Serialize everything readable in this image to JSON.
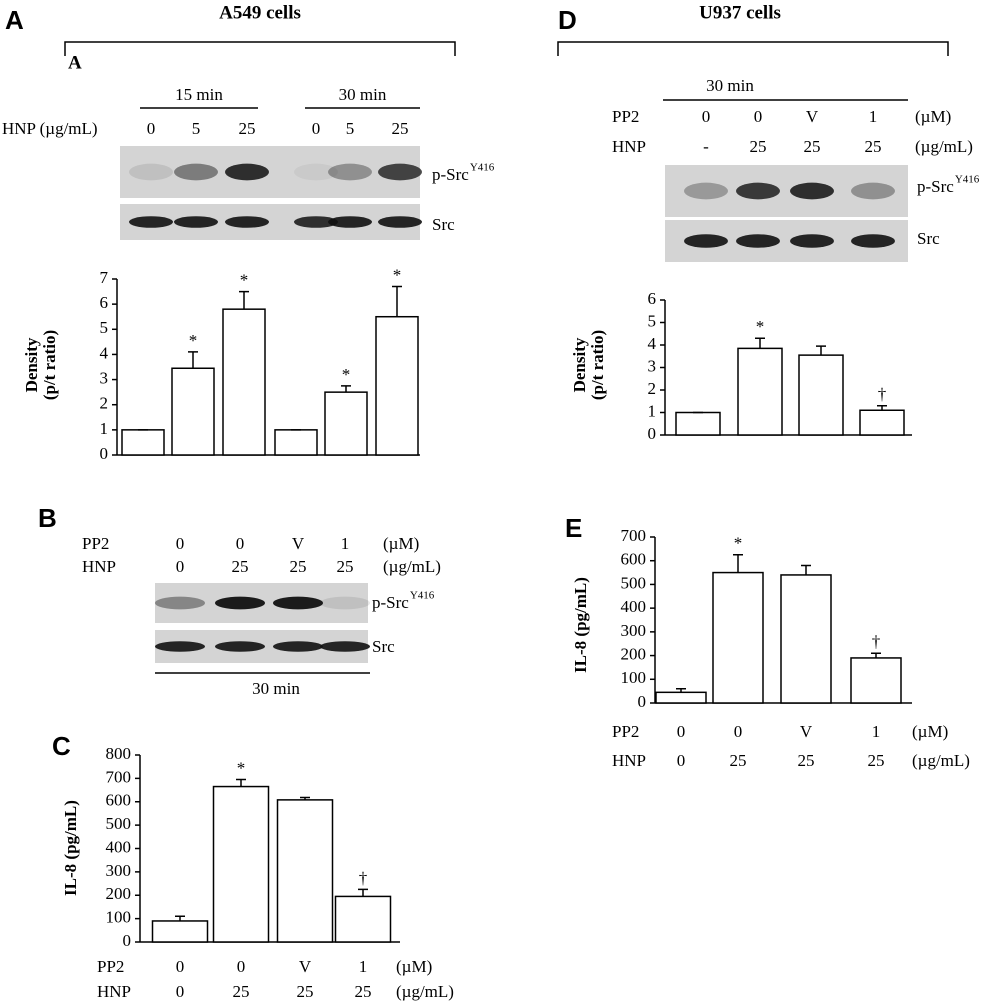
{
  "chart_data": [
    {
      "type": "bar",
      "panel": "A",
      "title": "A549 cells",
      "subtitle": "A",
      "groups": [
        "15 min",
        "30 min"
      ],
      "row_label": "HNP (µg/mL)",
      "categories": [
        "0",
        "5",
        "25",
        "0",
        "5",
        "25"
      ],
      "blot_labels": [
        {
          "text": "p-Src",
          "sup": "Y416"
        },
        {
          "text": "Src"
        }
      ],
      "ylabel": [
        "Density",
        "(p/t ratio)"
      ],
      "values": [
        1,
        3.45,
        5.8,
        1,
        2.5,
        5.5
      ],
      "errors": [
        0,
        0.65,
        0.7,
        0,
        0.25,
        1.2
      ],
      "annotations": [
        null,
        "*",
        "*",
        null,
        "*",
        "*"
      ],
      "ylim": [
        0,
        7
      ],
      "yticks": [
        0,
        1,
        2,
        3,
        4,
        5,
        6,
        7
      ],
      "color": "#ffffff"
    },
    {
      "type": "bar",
      "panel": "C",
      "rows": [
        {
          "label": "PP2",
          "categories": [
            "0",
            "0",
            "V",
            "1"
          ],
          "unit": "(µM)"
        },
        {
          "label": "HNP",
          "categories": [
            "0",
            "25",
            "25",
            "25"
          ],
          "unit": "(µg/mL)"
        }
      ],
      "ylabel": [
        "IL-8 (pg/mL)"
      ],
      "values": [
        90,
        665,
        608,
        195
      ],
      "errors": [
        20,
        30,
        10,
        30
      ],
      "annotations": [
        null,
        "*",
        null,
        "†"
      ],
      "ylim": [
        0,
        800
      ],
      "yticks": [
        0,
        100,
        200,
        300,
        400,
        500,
        600,
        700,
        800
      ],
      "color": "#ffffff"
    },
    {
      "type": "bar",
      "panel": "D",
      "title": "U937 cells",
      "time": "30 min",
      "rows": [
        {
          "label": "PP2",
          "categories": [
            "0",
            "0",
            "V",
            "1"
          ],
          "unit": "(µM)"
        },
        {
          "label": "HNP",
          "categories": [
            "-",
            "25",
            "25",
            "25"
          ],
          "unit": "(µg/mL)"
        }
      ],
      "blot_labels": [
        {
          "text": "p-Src",
          "sup": "Y416"
        },
        {
          "text": "Src"
        }
      ],
      "ylabel": [
        "Density",
        "(p/t ratio)"
      ],
      "values": [
        1,
        3.85,
        3.55,
        1.1
      ],
      "errors": [
        0,
        0.45,
        0.4,
        0.2
      ],
      "annotations": [
        null,
        "*",
        null,
        "†"
      ],
      "ylim": [
        0,
        6
      ],
      "yticks": [
        0,
        1,
        2,
        3,
        4,
        5,
        6
      ],
      "color": "#ffffff"
    },
    {
      "type": "bar",
      "panel": "E",
      "rows": [
        {
          "label": "PP2",
          "categories": [
            "0",
            "0",
            "V",
            "1"
          ],
          "unit": "(µM)"
        },
        {
          "label": "HNP",
          "categories": [
            "0",
            "25",
            "25",
            "25"
          ],
          "unit": "(µg/mL)"
        }
      ],
      "ylabel": [
        "IL-8 (pg/mL)"
      ],
      "values": [
        45,
        550,
        540,
        190
      ],
      "errors": [
        15,
        75,
        40,
        20
      ],
      "annotations": [
        null,
        "*",
        null,
        "†"
      ],
      "ylim": [
        0,
        700
      ],
      "yticks": [
        0,
        100,
        200,
        300,
        400,
        500,
        600,
        700
      ],
      "color": "#ffffff"
    }
  ],
  "blot_b": {
    "panel": "B",
    "time": "30 min",
    "rows": [
      {
        "label": "PP2",
        "categories": [
          "0",
          "0",
          "V",
          "1"
        ],
        "unit": "(µM)"
      },
      {
        "label": "HNP",
        "categories": [
          "0",
          "25",
          "25",
          "25"
        ],
        "unit": "(µg/mL)"
      }
    ],
    "blot_labels": [
      {
        "text": "p-Src",
        "sup": "Y416"
      },
      {
        "text": "Src"
      }
    ]
  }
}
